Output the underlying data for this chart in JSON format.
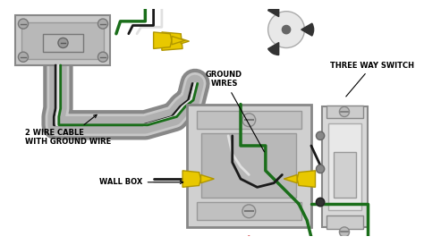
{
  "background_color": "#ffffff",
  "figsize": [
    4.74,
    2.74
  ],
  "dpi": 100,
  "labels": {
    "ground_wires": "GROUND\nWIRES",
    "three_way_switch": "THREE WAY SWITCH",
    "two_wire_cable": "2 WIRE CABLE\nWITH GROUND WIRE",
    "wall_box": "WALL BOX"
  },
  "colors": {
    "black_wire": "#1a1a1a",
    "red_wire": "#cc1111",
    "green_wire": "#1a6e1a",
    "yellow_conn": "#e8c800",
    "yellow_dark": "#b09600",
    "conduit_fill": "#c8c8c8",
    "conduit_edge": "#888888",
    "box_fill": "#d4d4d4",
    "box_edge": "#888888",
    "inner_fill": "#c0c0c0",
    "switch_fill": "#d8d8d8",
    "switch_body": "#e4e4e4",
    "dark": "#555555",
    "white_wire": "#e0e0e0",
    "screw": "#999999"
  }
}
